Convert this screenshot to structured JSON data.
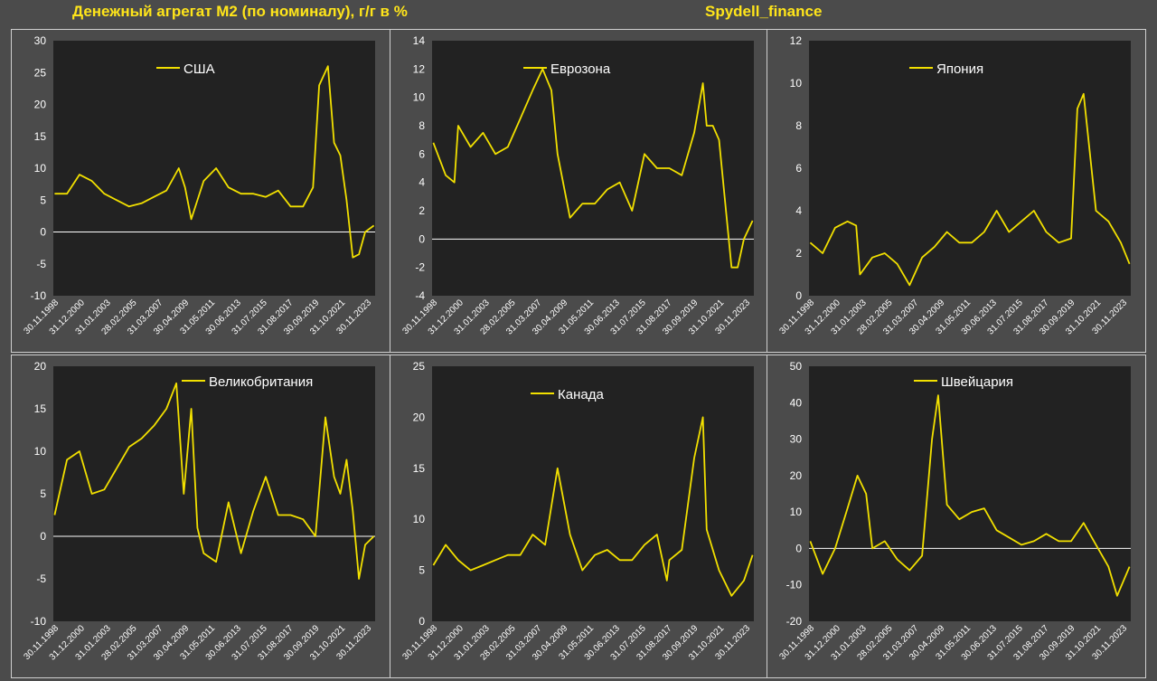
{
  "header": {
    "title": "Денежный агрегат М2 (по номиналу), г/г в %",
    "brand": "Spydell_finance"
  },
  "colors": {
    "line": "#f2e000",
    "plot_bg": "#222222",
    "axis_text": "#ffffff",
    "header_text": "#ffe51a"
  },
  "x_tick_labels": [
    "30.11.1998",
    "31.12.2000",
    "31.01.2003",
    "28.02.2005",
    "31.03.2007",
    "30.04.2009",
    "31.05.2011",
    "30.06.2013",
    "31.07.2015",
    "31.08.2017",
    "30.09.2019",
    "31.10.2021",
    "30.11.2023"
  ],
  "chart_data": [
    {
      "type": "line",
      "legend": "США",
      "ylim": [
        -10,
        30
      ],
      "yticks": [
        -10,
        -5,
        0,
        5,
        10,
        15,
        20,
        25,
        30
      ],
      "x": [
        1999,
        2000,
        2001,
        2002,
        2003,
        2004,
        2005,
        2006,
        2007,
        2008,
        2009,
        2009.5,
        2010,
        2011,
        2012,
        2013,
        2014,
        2015,
        2016,
        2017,
        2018,
        2019,
        2019.8,
        2020.3,
        2021,
        2021.5,
        2022,
        2022.5,
        2023,
        2023.5,
        2024,
        2024.7
      ],
      "values": [
        6,
        6,
        9,
        8,
        6,
        5,
        4,
        4.5,
        5.5,
        6.5,
        10,
        7,
        2,
        8,
        10,
        7,
        6,
        6,
        5.5,
        6.5,
        4,
        4,
        7,
        23,
        26,
        14,
        12,
        5,
        -4,
        -3.5,
        0,
        1
      ]
    },
    {
      "type": "line",
      "legend": "Еврозона",
      "ylim": [
        -4,
        14
      ],
      "yticks": [
        -4,
        -2,
        0,
        2,
        4,
        6,
        8,
        10,
        12,
        14
      ],
      "x": [
        1999,
        2000,
        2000.7,
        2001,
        2002,
        2003,
        2004,
        2005,
        2006,
        2007,
        2007.8,
        2008.5,
        2009,
        2010,
        2011,
        2012,
        2013,
        2014,
        2015,
        2016,
        2017,
        2018,
        2019,
        2020,
        2020.7,
        2021,
        2021.5,
        2022,
        2023,
        2023.5,
        2024,
        2024.7
      ],
      "values": [
        6.8,
        4.5,
        4,
        8,
        6.5,
        7.5,
        6,
        6.5,
        8.5,
        10.5,
        12,
        10.5,
        6,
        1.5,
        2.5,
        2.5,
        3.5,
        4,
        2,
        6,
        5,
        5,
        4.5,
        7.5,
        11,
        8,
        8,
        7,
        -2,
        -2,
        0,
        1.3
      ]
    },
    {
      "type": "line",
      "legend": "Япония",
      "ylim": [
        0,
        12
      ],
      "yticks": [
        0,
        2,
        4,
        6,
        8,
        10,
        12
      ],
      "x": [
        1999,
        2000,
        2001,
        2002,
        2002.7,
        2003,
        2004,
        2005,
        2006,
        2007,
        2008,
        2009,
        2010,
        2011,
        2012,
        2013,
        2014,
        2015,
        2016,
        2017,
        2018,
        2019,
        2020,
        2020.5,
        2021,
        2022,
        2023,
        2024,
        2024.7
      ],
      "values": [
        2.5,
        2,
        3.2,
        3.5,
        3.3,
        1,
        1.8,
        2,
        1.5,
        0.5,
        1.8,
        2.3,
        3,
        2.5,
        2.5,
        3,
        4,
        3,
        3.5,
        4,
        3,
        2.5,
        2.7,
        8.8,
        9.5,
        4,
        3.5,
        2.5,
        1.5
      ]
    },
    {
      "type": "line",
      "legend": "Великобритания",
      "ylim": [
        -10,
        20
      ],
      "yticks": [
        -10,
        -5,
        0,
        5,
        10,
        15,
        20
      ],
      "x": [
        1999,
        2000,
        2001,
        2002,
        2003,
        2004,
        2005,
        2006,
        2007,
        2008,
        2008.8,
        2009.4,
        2010,
        2010.5,
        2011,
        2012,
        2013,
        2014,
        2015,
        2016,
        2017,
        2018,
        2019,
        2020,
        2020.8,
        2021.5,
        2022,
        2022.5,
        2023,
        2023.5,
        2024,
        2024.7
      ],
      "values": [
        2.5,
        9,
        10,
        5,
        5.5,
        8,
        10.5,
        11.5,
        13,
        15,
        18,
        5,
        15,
        1,
        -2,
        -3,
        4,
        -2,
        3,
        7,
        2.5,
        2.5,
        2,
        0,
        14,
        7,
        5,
        9,
        3,
        -5,
        -1,
        0
      ]
    },
    {
      "type": "line",
      "legend": "Канада",
      "ylim": [
        0,
        25
      ],
      "yticks": [
        0,
        5,
        10,
        15,
        20,
        25
      ],
      "x": [
        1999,
        2000,
        2001,
        2002,
        2003,
        2004,
        2005,
        2006,
        2007,
        2008,
        2009,
        2010,
        2011,
        2012,
        2013,
        2014,
        2015,
        2016,
        2017,
        2017.8,
        2018,
        2019,
        2020,
        2020.7,
        2021,
        2022,
        2023,
        2024,
        2024.7
      ],
      "values": [
        5.5,
        7.5,
        6,
        5,
        5.5,
        6,
        6.5,
        6.5,
        8.5,
        7.5,
        15,
        8.5,
        5,
        6.5,
        7,
        6,
        6,
        7.5,
        8.5,
        4,
        6,
        7,
        16,
        20,
        9,
        5,
        2.5,
        4,
        6.5
      ]
    },
    {
      "type": "line",
      "legend": "Швейцария",
      "ylim": [
        -20,
        50
      ],
      "yticks": [
        -20,
        -10,
        0,
        10,
        20,
        30,
        40,
        50
      ],
      "x": [
        1999,
        2000,
        2001,
        2002,
        2002.8,
        2003.5,
        2004,
        2005,
        2006,
        2007,
        2008,
        2008.8,
        2009.3,
        2010,
        2011,
        2012,
        2013,
        2014,
        2015,
        2016,
        2017,
        2018,
        2019,
        2020,
        2021,
        2022,
        2023,
        2023.7,
        2024.7
      ],
      "values": [
        2,
        -7,
        0,
        11,
        20,
        15,
        0,
        2,
        -3,
        -6,
        -2,
        30,
        42,
        12,
        8,
        10,
        11,
        5,
        3,
        1,
        2,
        4,
        2,
        2,
        7,
        1,
        -5,
        -13,
        -5
      ]
    }
  ]
}
